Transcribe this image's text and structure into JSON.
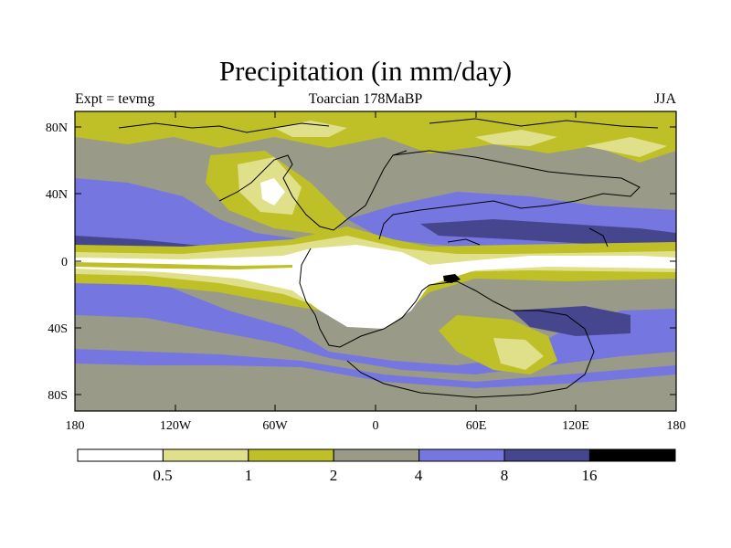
{
  "header": {
    "title": "Precipitation (in mm/day)",
    "experiment": "Expt = tevmg",
    "period": "Toarcian 178MaBP",
    "season": "JJA"
  },
  "map": {
    "lat_labels": [
      "80N",
      "40N",
      "0",
      "40S",
      "80S"
    ],
    "lon_labels": [
      "180",
      "120W",
      "60W",
      "0",
      "60E",
      "120E",
      "180"
    ]
  },
  "colorbar": {
    "colors": [
      "#ffffff",
      "#e0e08a",
      "#bfbf28",
      "#9a9a88",
      "#7676e0",
      "#46468f",
      "#000000"
    ],
    "labels": [
      "0.5",
      "1",
      "2",
      "4",
      "8",
      "16"
    ]
  }
}
